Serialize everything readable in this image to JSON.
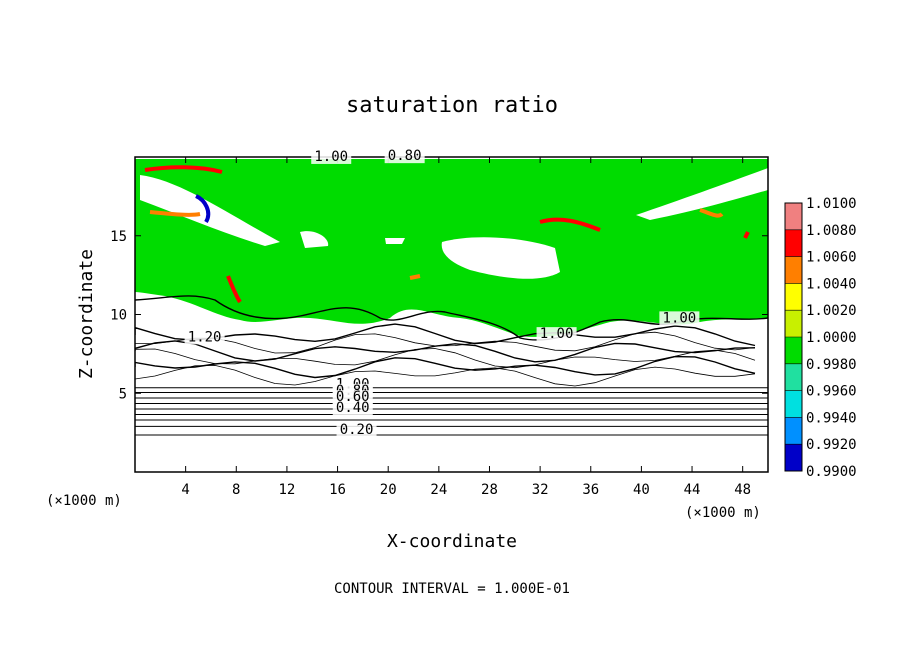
{
  "chart_data": {
    "type": "heatmap",
    "title": "saturation ratio",
    "xlabel": "X-coordinate",
    "ylabel": "Z-coordinate",
    "x_unit_note": "(×1000 m)",
    "y_unit_note": "(×1000 m)",
    "xlim": [
      0,
      50
    ],
    "ylim": [
      0,
      20
    ],
    "x_ticks": [
      4,
      8,
      12,
      16,
      20,
      24,
      28,
      32,
      36,
      40,
      44,
      48
    ],
    "y_ticks": [
      5,
      10,
      15
    ],
    "x_tick_labels": [
      "4",
      "8",
      "12",
      "16",
      "20",
      "24",
      "28",
      "32",
      "36",
      "40",
      "44",
      "48"
    ],
    "y_tick_labels": [
      "5",
      "10",
      "15"
    ],
    "footer": "CONTOUR INTERVAL = 1.000E-01",
    "contour_interval": 0.1,
    "colorbar": {
      "labels": [
        "1.0100",
        "1.0080",
        "1.0060",
        "1.0040",
        "1.0020",
        "1.0000",
        "0.9980",
        "0.9960",
        "0.9940",
        "0.9920",
        "0.9900"
      ],
      "colors": [
        "#f08080",
        "#ff0000",
        "#ff7f00",
        "#ffff00",
        "#c8f000",
        "#00dc00",
        "#20e0a0",
        "#00e0e0",
        "#0090ff",
        "#0000c8",
        "#5a00b4"
      ]
    },
    "contour_labels": [
      {
        "text": "1.00",
        "x": 15.5,
        "y": 19.75
      },
      {
        "text": "0.80",
        "x": 21.3,
        "y": 19.8
      },
      {
        "text": "1.20",
        "x": 5.5,
        "y": 8.3
      },
      {
        "text": "1.00",
        "x": 33.3,
        "y": 8.5
      },
      {
        "text": "1.00",
        "x": 43.0,
        "y": 9.5
      },
      {
        "text": "1.00",
        "x": 17.2,
        "y": 5.3
      },
      {
        "text": "0.80",
        "x": 17.2,
        "y": 4.9
      },
      {
        "text": "0.60",
        "x": 17.2,
        "y": 4.5
      },
      {
        "text": "0.40",
        "x": 17.2,
        "y": 3.8
      },
      {
        "text": "0.20",
        "x": 17.5,
        "y": 2.4
      }
    ]
  }
}
